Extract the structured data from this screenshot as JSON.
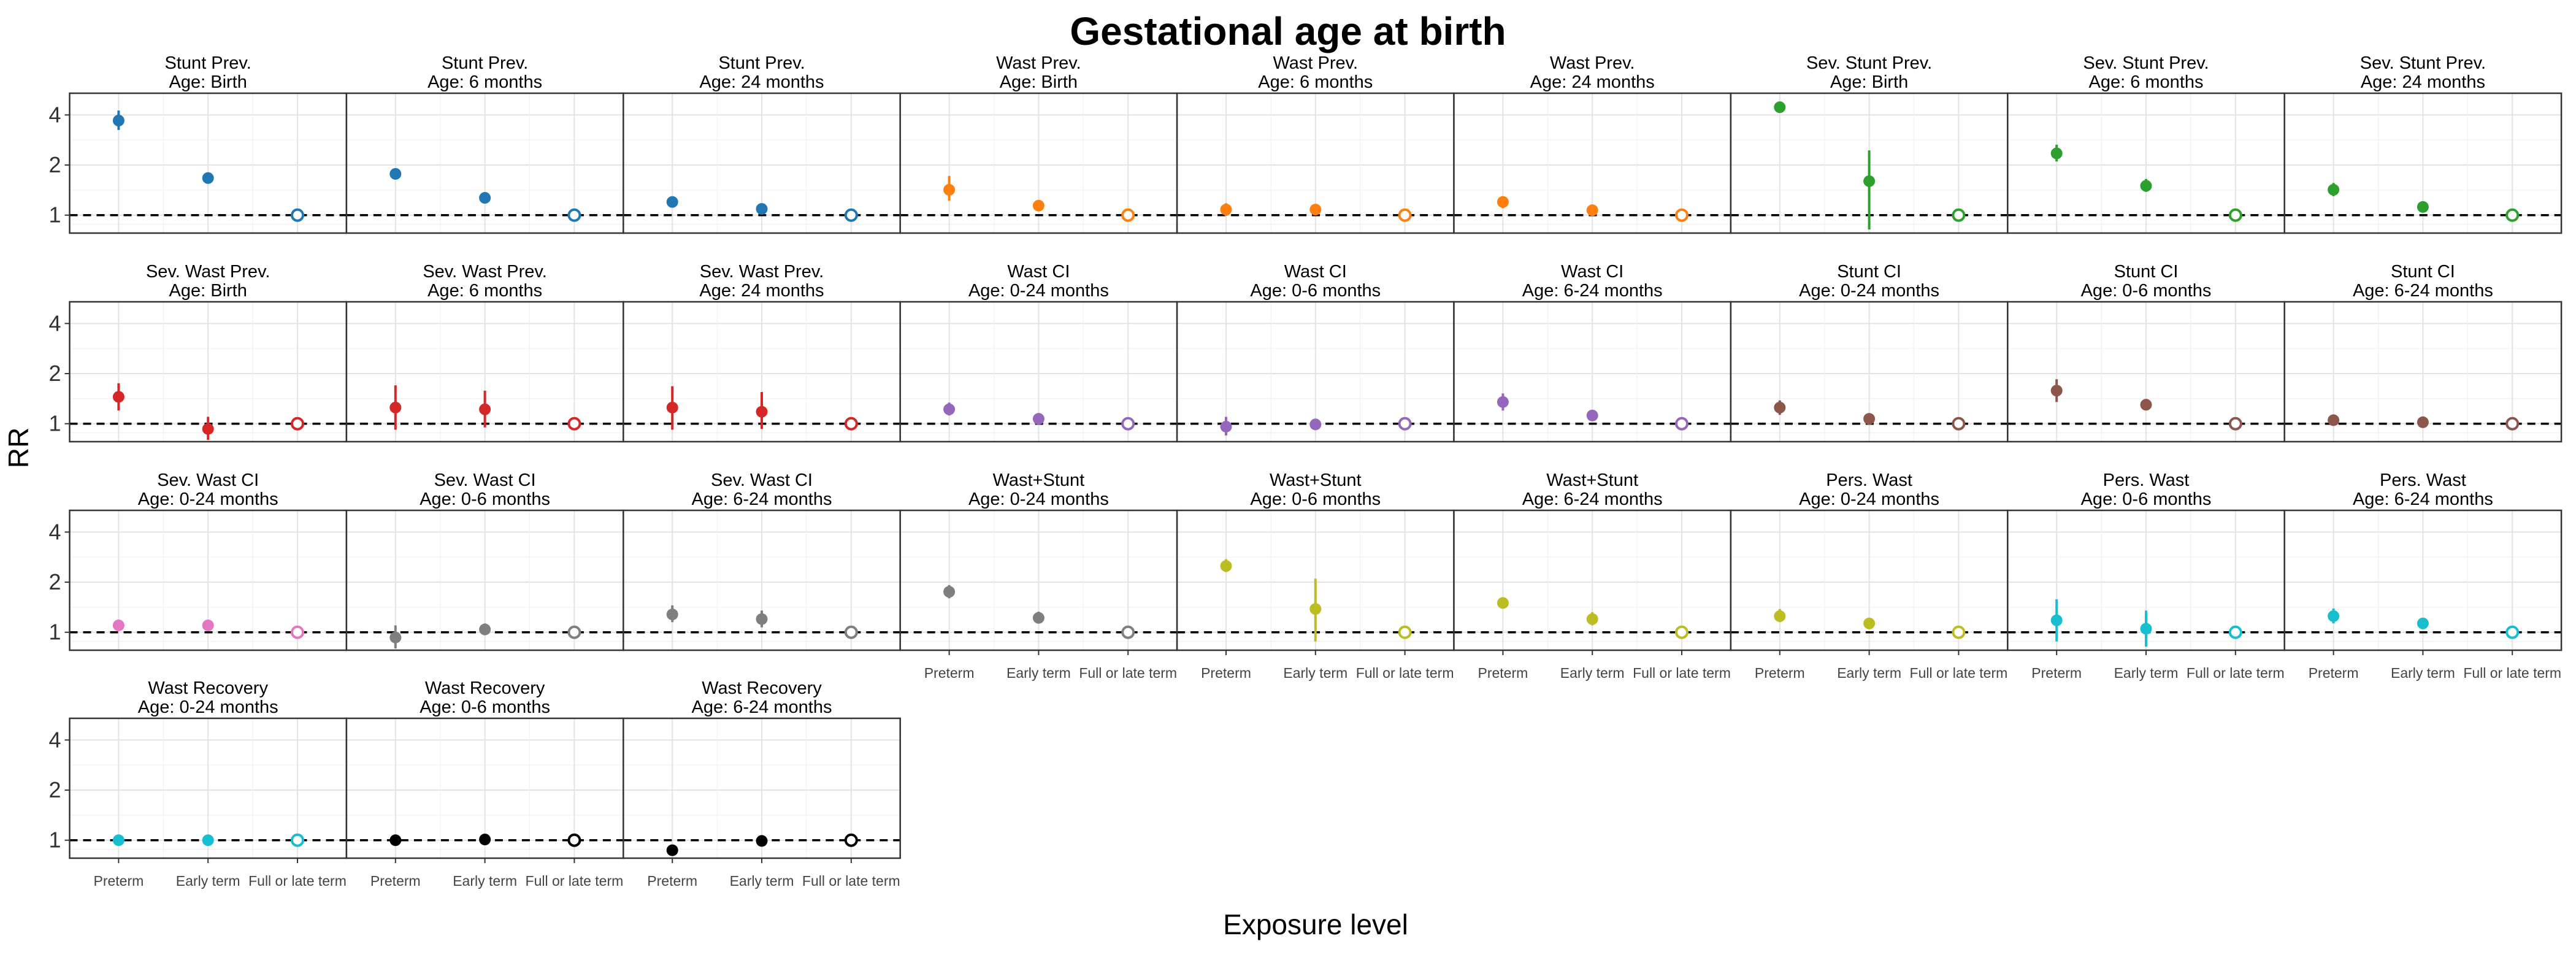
{
  "chart_data": {
    "type": "scatter",
    "title": "Gestational age at birth",
    "xlabel": "Exposure level",
    "ylabel": "RR",
    "y_scale": "log",
    "y_ticks": [
      1,
      2,
      4
    ],
    "ylim": [
      0.78,
      5.4
    ],
    "categories": [
      "Preterm",
      "Early term",
      "Full or late term"
    ],
    "reference_line": 1,
    "grid": true,
    "panels": [
      {
        "title_line1": "Stunt Prev.",
        "title_line2": "Age: Birth",
        "color": "#1f77b4",
        "points": [
          {
            "est": 3.7,
            "lo": 3.25,
            "hi": 4.25
          },
          {
            "est": 1.67,
            "lo": 1.61,
            "hi": 1.74
          },
          {
            "est": 1,
            "ref": true
          }
        ]
      },
      {
        "title_line1": "Stunt Prev.",
        "title_line2": "Age: 6 months",
        "color": "#1f77b4",
        "points": [
          {
            "est": 1.77,
            "lo": 1.71,
            "hi": 1.83
          },
          {
            "est": 1.27,
            "lo": 1.23,
            "hi": 1.31
          },
          {
            "est": 1,
            "ref": true
          }
        ]
      },
      {
        "title_line1": "Stunt Prev.",
        "title_line2": "Age: 24 months",
        "color": "#1f77b4",
        "points": [
          {
            "est": 1.2,
            "lo": 1.15,
            "hi": 1.25
          },
          {
            "est": 1.09,
            "lo": 1.06,
            "hi": 1.12
          },
          {
            "est": 1,
            "ref": true
          }
        ]
      },
      {
        "title_line1": "Wast Prev.",
        "title_line2": "Age: Birth",
        "color": "#ff7f0e",
        "points": [
          {
            "est": 1.42,
            "lo": 1.22,
            "hi": 1.72
          },
          {
            "est": 1.14,
            "lo": 1.08,
            "hi": 1.2
          },
          {
            "est": 1,
            "ref": true
          }
        ]
      },
      {
        "title_line1": "Wast Prev.",
        "title_line2": "Age: 6 months",
        "color": "#ff7f0e",
        "points": [
          {
            "est": 1.08,
            "lo": 0.99,
            "hi": 1.18
          },
          {
            "est": 1.08,
            "lo": 1.02,
            "hi": 1.14
          },
          {
            "est": 1,
            "ref": true
          }
        ]
      },
      {
        "title_line1": "Wast Prev.",
        "title_line2": "Age: 24 months",
        "color": "#ff7f0e",
        "points": [
          {
            "est": 1.2,
            "lo": 1.1,
            "hi": 1.3
          },
          {
            "est": 1.07,
            "lo": 1.01,
            "hi": 1.13
          },
          {
            "est": 1,
            "ref": true
          }
        ]
      },
      {
        "title_line1": "Sev. Stunt Prev.",
        "title_line2": "Age: Birth",
        "color": "#2ca02c",
        "points": [
          {
            "est": 4.45,
            "lo": 4.2,
            "hi": 4.7
          },
          {
            "est": 1.6,
            "lo": 0.82,
            "hi": 2.45
          },
          {
            "est": 1,
            "ref": true
          }
        ]
      },
      {
        "title_line1": "Sev. Stunt Prev.",
        "title_line2": "Age: 6 months",
        "color": "#2ca02c",
        "points": [
          {
            "est": 2.35,
            "lo": 2.1,
            "hi": 2.65
          },
          {
            "est": 1.5,
            "lo": 1.38,
            "hi": 1.65
          },
          {
            "est": 1,
            "ref": true
          }
        ]
      },
      {
        "title_line1": "Sev. Stunt Prev.",
        "title_line2": "Age: 24 months",
        "color": "#2ca02c",
        "points": [
          {
            "est": 1.42,
            "lo": 1.3,
            "hi": 1.56
          },
          {
            "est": 1.12,
            "lo": 1.06,
            "hi": 1.18
          },
          {
            "est": 1,
            "ref": true
          }
        ]
      },
      {
        "title_line1": "Sev. Wast Prev.",
        "title_line2": "Age: Birth",
        "color": "#d62728",
        "points": [
          {
            "est": 1.45,
            "lo": 1.2,
            "hi": 1.75
          },
          {
            "est": 0.93,
            "lo": 0.8,
            "hi": 1.1
          },
          {
            "est": 1,
            "ref": true
          }
        ]
      },
      {
        "title_line1": "Sev. Wast Prev.",
        "title_line2": "Age: 6 months",
        "color": "#d62728",
        "points": [
          {
            "est": 1.25,
            "lo": 0.92,
            "hi": 1.7
          },
          {
            "est": 1.22,
            "lo": 0.95,
            "hi": 1.58
          },
          {
            "est": 1,
            "ref": true
          }
        ]
      },
      {
        "title_line1": "Sev. Wast Prev.",
        "title_line2": "Age: 24 months",
        "color": "#d62728",
        "points": [
          {
            "est": 1.25,
            "lo": 0.92,
            "hi": 1.68
          },
          {
            "est": 1.18,
            "lo": 0.93,
            "hi": 1.55
          },
          {
            "est": 1,
            "ref": true
          }
        ]
      },
      {
        "title_line1": "Wast CI",
        "title_line2": "Age: 0-24 months",
        "color": "#9467bd",
        "points": [
          {
            "est": 1.22,
            "lo": 1.12,
            "hi": 1.34
          },
          {
            "est": 1.07,
            "lo": 1.04,
            "hi": 1.11
          },
          {
            "est": 1,
            "ref": true
          }
        ]
      },
      {
        "title_line1": "Wast CI",
        "title_line2": "Age: 0-6 months",
        "color": "#9467bd",
        "points": [
          {
            "est": 0.96,
            "lo": 0.85,
            "hi": 1.1
          },
          {
            "est": 0.99,
            "lo": 0.96,
            "hi": 1.03
          },
          {
            "est": 1,
            "ref": true
          }
        ]
      },
      {
        "title_line1": "Wast CI",
        "title_line2": "Age: 6-24 months",
        "color": "#9467bd",
        "points": [
          {
            "est": 1.35,
            "lo": 1.2,
            "hi": 1.52
          },
          {
            "est": 1.12,
            "lo": 1.07,
            "hi": 1.18
          },
          {
            "est": 1,
            "ref": true
          }
        ]
      },
      {
        "title_line1": "Stunt CI",
        "title_line2": "Age: 0-24 months",
        "color": "#8c564b",
        "points": [
          {
            "est": 1.25,
            "lo": 1.13,
            "hi": 1.38
          },
          {
            "est": 1.07,
            "lo": 1.04,
            "hi": 1.11
          },
          {
            "est": 1,
            "ref": true
          }
        ]
      },
      {
        "title_line1": "Stunt CI",
        "title_line2": "Age: 0-6 months",
        "color": "#8c564b",
        "points": [
          {
            "est": 1.58,
            "lo": 1.35,
            "hi": 1.85
          },
          {
            "est": 1.3,
            "lo": 1.26,
            "hi": 1.35
          },
          {
            "est": 1,
            "ref": true
          }
        ]
      },
      {
        "title_line1": "Stunt CI",
        "title_line2": "Age: 6-24 months",
        "color": "#8c564b",
        "points": [
          {
            "est": 1.05,
            "lo": 1.02,
            "hi": 1.08
          },
          {
            "est": 1.02,
            "lo": 1.0,
            "hi": 1.04
          },
          {
            "est": 1,
            "ref": true
          }
        ]
      },
      {
        "title_line1": "Sev. Wast CI",
        "title_line2": "Age: 0-24 months",
        "color": "#e377c2",
        "points": [
          {
            "est": 1.1,
            "lo": 1.02,
            "hi": 1.19
          },
          {
            "est": 1.1,
            "lo": 1.02,
            "hi": 1.19
          },
          {
            "est": 1,
            "ref": true
          }
        ]
      },
      {
        "title_line1": "Sev. Wast CI",
        "title_line2": "Age: 0-6 months",
        "color": "#7f7f7f",
        "points": [
          {
            "est": 0.93,
            "lo": 0.8,
            "hi": 1.1
          },
          {
            "est": 1.04,
            "lo": 0.96,
            "hi": 1.13
          },
          {
            "est": 1,
            "ref": true
          }
        ]
      },
      {
        "title_line1": "Sev. Wast CI",
        "title_line2": "Age: 6-24 months",
        "color": "#7f7f7f",
        "points": [
          {
            "est": 1.28,
            "lo": 1.15,
            "hi": 1.45
          },
          {
            "est": 1.2,
            "lo": 1.07,
            "hi": 1.35
          },
          {
            "est": 1,
            "ref": true
          }
        ]
      },
      {
        "title_line1": "Wast+Stunt",
        "title_line2": "Age: 0-24 months",
        "color": "#7f7f7f",
        "points": [
          {
            "est": 1.75,
            "lo": 1.6,
            "hi": 1.92
          },
          {
            "est": 1.22,
            "lo": 1.13,
            "hi": 1.33
          },
          {
            "est": 1,
            "ref": true
          }
        ]
      },
      {
        "title_line1": "Wast+Stunt",
        "title_line2": "Age: 0-6 months",
        "color": "#bcbd22",
        "points": [
          {
            "est": 2.5,
            "lo": 2.3,
            "hi": 2.75
          },
          {
            "est": 1.38,
            "lo": 0.88,
            "hi": 2.1
          },
          {
            "est": 1,
            "ref": true
          }
        ]
      },
      {
        "title_line1": "Wast+Stunt",
        "title_line2": "Age: 6-24 months",
        "color": "#bcbd22",
        "points": [
          {
            "est": 1.5,
            "lo": 1.42,
            "hi": 1.6
          },
          {
            "est": 1.2,
            "lo": 1.1,
            "hi": 1.32
          },
          {
            "est": 1,
            "ref": true
          }
        ]
      },
      {
        "title_line1": "Pers. Wast",
        "title_line2": "Age: 0-24 months",
        "color": "#bcbd22",
        "points": [
          {
            "est": 1.25,
            "lo": 1.15,
            "hi": 1.38
          },
          {
            "est": 1.13,
            "lo": 1.06,
            "hi": 1.21
          },
          {
            "est": 1,
            "ref": true
          }
        ]
      },
      {
        "title_line1": "Pers. Wast",
        "title_line2": "Age: 0-6 months",
        "color": "#17becf",
        "points": [
          {
            "est": 1.18,
            "lo": 0.88,
            "hi": 1.58
          },
          {
            "est": 1.05,
            "lo": 0.82,
            "hi": 1.35
          },
          {
            "est": 1,
            "ref": true
          }
        ]
      },
      {
        "title_line1": "Pers. Wast",
        "title_line2": "Age: 6-24 months",
        "color": "#17becf",
        "points": [
          {
            "est": 1.25,
            "lo": 1.13,
            "hi": 1.39
          },
          {
            "est": 1.13,
            "lo": 1.06,
            "hi": 1.21
          },
          {
            "est": 1,
            "ref": true
          }
        ]
      },
      {
        "title_line1": "Wast Recovery",
        "title_line2": "Age: 0-24 months",
        "color": "#17becf",
        "points": [
          {
            "est": 1.0,
            "lo": 0.98,
            "hi": 1.02
          },
          {
            "est": 1.0,
            "lo": 0.98,
            "hi": 1.02
          },
          {
            "est": 1,
            "ref": true
          }
        ]
      },
      {
        "title_line1": "Wast Recovery",
        "title_line2": "Age: 0-6 months",
        "color": "#000000",
        "points": [
          {
            "est": 1.0,
            "lo": 0.98,
            "hi": 1.02
          },
          {
            "est": 1.01,
            "lo": 0.99,
            "hi": 1.03
          },
          {
            "est": 1,
            "ref": true
          }
        ]
      },
      {
        "title_line1": "Wast Recovery",
        "title_line2": "Age: 6-24 months",
        "color": "#000000",
        "points": [
          {
            "est": 0.87,
            "lo": 0.82,
            "hi": 0.93
          },
          {
            "est": 0.99,
            "lo": 0.96,
            "hi": 1.02
          },
          {
            "est": 1,
            "ref": true
          }
        ]
      }
    ]
  }
}
